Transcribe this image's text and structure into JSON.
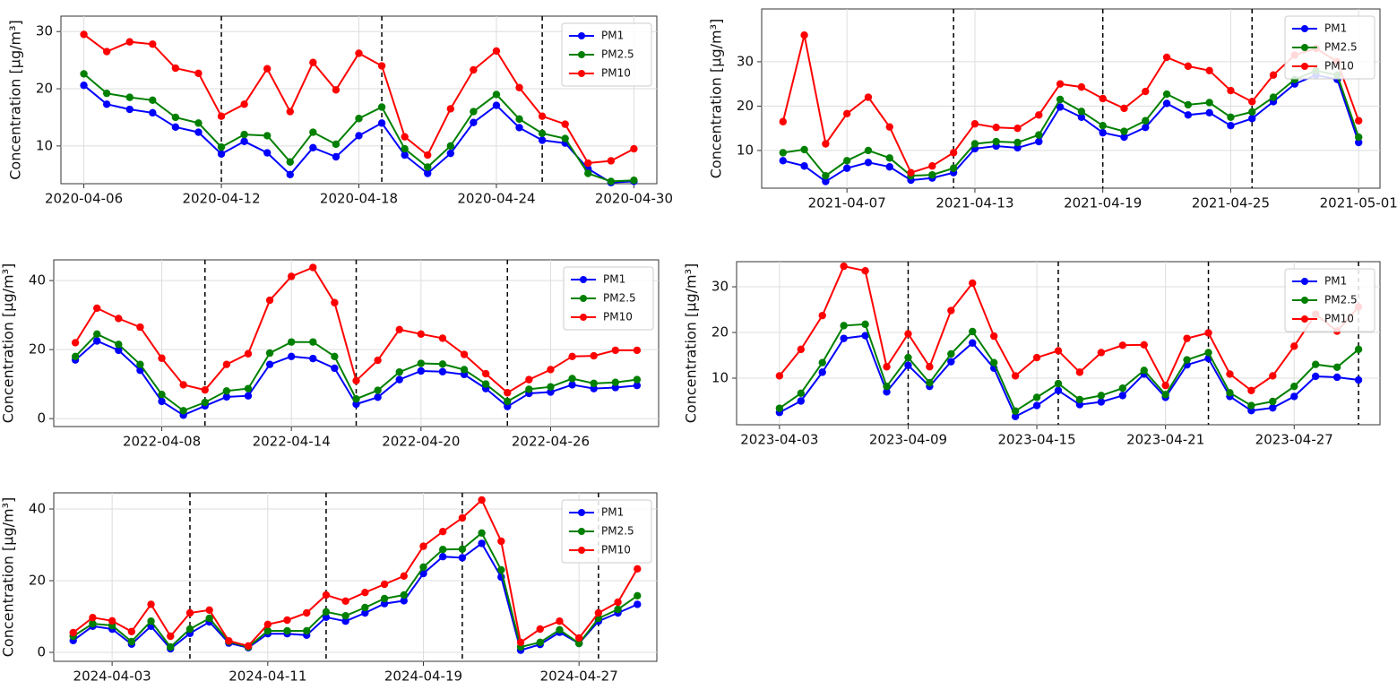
{
  "chart_data": [
    {
      "type": "line",
      "ylabel": "Concentration [μg/m³]",
      "x": [
        "2020-04-06",
        "2020-04-07",
        "2020-04-08",
        "2020-04-09",
        "2020-04-10",
        "2020-04-11",
        "2020-04-12",
        "2020-04-13",
        "2020-04-14",
        "2020-04-15",
        "2020-04-16",
        "2020-04-17",
        "2020-04-18",
        "2020-04-19",
        "2020-04-20",
        "2020-04-21",
        "2020-04-22",
        "2020-04-23",
        "2020-04-24",
        "2020-04-25",
        "2020-04-26",
        "2020-04-27",
        "2020-04-28",
        "2020-04-29",
        "2020-04-30"
      ],
      "series": [
        {
          "name": "PM1",
          "color": "#0000ff",
          "values": [
            20.6,
            17.3,
            16.4,
            15.8,
            13.3,
            12.4,
            8.6,
            10.8,
            8.8,
            5,
            9.7,
            8.1,
            11.8,
            14,
            8.4,
            5.2,
            8.7,
            14.1,
            17.1,
            13.2,
            11,
            10.5,
            6,
            3.6,
            3.8
          ]
        },
        {
          "name": "PM2.5",
          "color": "#008000",
          "values": [
            22.6,
            19.2,
            18.5,
            18,
            15,
            14,
            9.8,
            12,
            11.8,
            7.2,
            12.4,
            10.3,
            14.8,
            16.8,
            9.5,
            6.3,
            10,
            16,
            19,
            14.7,
            12.2,
            11.3,
            5.2,
            3.8,
            4.0
          ]
        },
        {
          "name": "PM10",
          "color": "#ff0000",
          "values": [
            29.5,
            26.5,
            28.2,
            27.8,
            23.6,
            22.7,
            15.2,
            17.3,
            23.5,
            16,
            24.6,
            19.8,
            26.2,
            24,
            11.6,
            8.4,
            16.5,
            23.3,
            26.6,
            20.2,
            15.2,
            13.8,
            7,
            7.4,
            9.5
          ]
        }
      ],
      "xlim": [
        "2020-04-05",
        "2020-05-01"
      ],
      "xticks": [
        "2020-04-06",
        "2020-04-12",
        "2020-04-18",
        "2020-04-24",
        "2020-04-30"
      ],
      "ylim": [
        3.4,
        32.7
      ],
      "yticks": [
        10,
        20,
        30
      ],
      "vlines": [
        "2020-04-12",
        "2020-04-19",
        "2020-04-26"
      ],
      "grid": true,
      "legend": "upper right"
    },
    {
      "type": "line",
      "ylabel": "Concentration [μg/m³]",
      "x": [
        "2021-04-04",
        "2021-04-05",
        "2021-04-06",
        "2021-04-07",
        "2021-04-08",
        "2021-04-09",
        "2021-04-10",
        "2021-04-11",
        "2021-04-12",
        "2021-04-13",
        "2021-04-14",
        "2021-04-15",
        "2021-04-16",
        "2021-04-17",
        "2021-04-18",
        "2021-04-19",
        "2021-04-20",
        "2021-04-21",
        "2021-04-22",
        "2021-04-23",
        "2021-04-24",
        "2021-04-25",
        "2021-04-26",
        "2021-04-27",
        "2021-04-28",
        "2021-04-29",
        "2021-04-30",
        "2021-05-01"
      ],
      "series": [
        {
          "name": "PM1",
          "color": "#0000ff",
          "values": [
            7.7,
            6.5,
            3,
            6,
            7.3,
            6.3,
            3.3,
            3.8,
            5,
            10.4,
            11,
            10.6,
            12,
            19.8,
            17.5,
            14,
            13,
            15.2,
            20.6,
            18,
            18.5,
            15.6,
            17.2,
            21,
            25,
            27,
            26,
            11.8
          ]
        },
        {
          "name": "PM2.5",
          "color": "#008000",
          "values": [
            9.5,
            10.2,
            4.3,
            7.7,
            10,
            8.3,
            4.3,
            4.5,
            6,
            11.5,
            12,
            11.8,
            13.5,
            21.5,
            18.8,
            15.6,
            14.3,
            16.7,
            22.7,
            20.3,
            20.8,
            17.5,
            18.7,
            22,
            26,
            28,
            27,
            13
          ]
        },
        {
          "name": "PM10",
          "color": "#ff0000",
          "values": [
            16.5,
            36,
            11.5,
            18.3,
            22,
            15.3,
            5,
            6.5,
            9.5,
            16,
            15.2,
            15,
            18,
            25,
            24.3,
            21.7,
            19.5,
            23.3,
            31,
            29,
            28,
            23.5,
            21,
            27,
            31.5,
            33,
            30,
            16.7
          ]
        }
      ],
      "xlim": [
        "2021-04-03",
        "2021-05-02"
      ],
      "xticks": [
        "2021-04-07",
        "2021-04-13",
        "2021-04-19",
        "2021-04-25",
        "2021-05-01"
      ],
      "ylim": [
        1.5,
        41.9
      ],
      "yticks": [
        10,
        20,
        30
      ],
      "vlines": [
        "2021-04-12",
        "2021-04-19",
        "2021-04-26"
      ],
      "grid": true,
      "legend": "upper right"
    },
    {
      "type": "line",
      "ylabel": "Concentration [μg/m³]",
      "x": [
        "2022-04-04",
        "2022-04-05",
        "2022-04-06",
        "2022-04-07",
        "2022-04-08",
        "2022-04-09",
        "2022-04-10",
        "2022-04-11",
        "2022-04-12",
        "2022-04-13",
        "2022-04-14",
        "2022-04-15",
        "2022-04-16",
        "2022-04-17",
        "2022-04-18",
        "2022-04-19",
        "2022-04-20",
        "2022-04-21",
        "2022-04-22",
        "2022-04-23",
        "2022-04-24",
        "2022-04-25",
        "2022-04-26",
        "2022-04-27",
        "2022-04-28",
        "2022-04-29",
        "2022-04-30"
      ],
      "series": [
        {
          "name": "PM1",
          "color": "#0000ff",
          "values": [
            17,
            22.5,
            19.8,
            14,
            5,
            1,
            3.7,
            6.3,
            6.6,
            15.7,
            18,
            17.4,
            14.6,
            4.2,
            6.2,
            11.3,
            13.8,
            13.6,
            12.8,
            8.7,
            3.5,
            7.3,
            7.7,
            9.8,
            8.7,
            9,
            9.6
          ]
        },
        {
          "name": "PM2.5",
          "color": "#008000",
          "values": [
            18,
            24.5,
            21.5,
            15.7,
            7,
            2.3,
            4.7,
            8,
            8.7,
            19,
            22.2,
            22.2,
            18,
            5.7,
            8.2,
            13.5,
            16,
            15.8,
            14.2,
            10,
            5,
            8.5,
            9.2,
            11.6,
            10.2,
            10.5,
            11.3
          ]
        },
        {
          "name": "PM10",
          "color": "#ff0000",
          "values": [
            22,
            32,
            29,
            26.5,
            17.5,
            9.8,
            8.3,
            15.7,
            18.8,
            34.3,
            41.2,
            43.8,
            33.6,
            11,
            16.9,
            25.8,
            24.5,
            23.3,
            18.6,
            13,
            7.5,
            11.3,
            14.2,
            18,
            18.2,
            19.8,
            19.8
          ]
        }
      ],
      "xlim": [
        "2022-04-03",
        "2022-05-01"
      ],
      "xticks": [
        "2022-04-08",
        "2022-04-14",
        "2022-04-20",
        "2022-04-26"
      ],
      "ylim": [
        -2.3,
        46
      ],
      "yticks": [
        0,
        20,
        40
      ],
      "vlines": [
        "2022-04-10",
        "2022-04-17",
        "2022-04-24"
      ],
      "grid": true,
      "legend": "upper right"
    },
    {
      "type": "line",
      "ylabel": "Concentration [μg/m³]",
      "x": [
        "2023-04-03",
        "2023-04-04",
        "2023-04-05",
        "2023-04-06",
        "2023-04-07",
        "2023-04-08",
        "2023-04-09",
        "2023-04-10",
        "2023-04-11",
        "2023-04-12",
        "2023-04-13",
        "2023-04-14",
        "2023-04-15",
        "2023-04-16",
        "2023-04-17",
        "2023-04-18",
        "2023-04-19",
        "2023-04-20",
        "2023-04-21",
        "2023-04-22",
        "2023-04-23",
        "2023-04-24",
        "2023-04-25",
        "2023-04-26",
        "2023-04-27",
        "2023-04-28",
        "2023-04-29",
        "2023-04-30"
      ],
      "series": [
        {
          "name": "PM1",
          "color": "#0000ff",
          "values": [
            2.5,
            5,
            11.3,
            18.7,
            19.3,
            7,
            12.8,
            8.2,
            13.6,
            17.7,
            12.2,
            1.6,
            4,
            7.3,
            4.2,
            4.8,
            6.2,
            10.9,
            5.8,
            12.9,
            14.3,
            6,
            2.9,
            3.5,
            6,
            10.4,
            10.2,
            9.6
          ]
        },
        {
          "name": "PM2.5",
          "color": "#008000",
          "values": [
            3.4,
            6.7,
            13.4,
            21.5,
            21.8,
            8.2,
            14.5,
            9,
            15.3,
            20.2,
            13.4,
            2.8,
            5.8,
            8.8,
            5.3,
            6.2,
            7.8,
            11.7,
            6.4,
            14,
            15.6,
            6.8,
            4,
            4.9,
            8.2,
            13,
            12.4,
            16.3
          ]
        },
        {
          "name": "PM10",
          "color": "#ff0000",
          "values": [
            10.5,
            16.3,
            23.7,
            34.5,
            33.5,
            12.5,
            19.7,
            12.5,
            24.8,
            30.8,
            19.2,
            10.5,
            14.5,
            16,
            11.3,
            15.6,
            17.2,
            17.3,
            8.4,
            18.7,
            19.9,
            10.9,
            7.3,
            10.5,
            17,
            24,
            20.3,
            25.6
          ]
        }
      ],
      "xlim": [
        "2023-04-01",
        "2023-05-01"
      ],
      "xticks": [
        "2023-04-03",
        "2023-04-09",
        "2023-04-15",
        "2023-04-21",
        "2023-04-27"
      ],
      "ylim": [
        -0.2,
        35.5
      ],
      "yticks": [
        10,
        20,
        30
      ],
      "vlines": [
        "2023-04-09",
        "2023-04-16",
        "2023-04-23",
        "2023-04-30"
      ],
      "grid": true,
      "legend": "upper right"
    },
    {
      "type": "line",
      "ylabel": "Concentration [μg/m³]",
      "x": [
        "2024-04-01",
        "2024-04-02",
        "2024-04-03",
        "2024-04-04",
        "2024-04-05",
        "2024-04-06",
        "2024-04-07",
        "2024-04-08",
        "2024-04-09",
        "2024-04-10",
        "2024-04-11",
        "2024-04-12",
        "2024-04-13",
        "2024-04-14",
        "2024-04-15",
        "2024-04-16",
        "2024-04-17",
        "2024-04-18",
        "2024-04-19",
        "2024-04-20",
        "2024-04-21",
        "2024-04-22",
        "2024-04-23",
        "2024-04-24",
        "2024-04-25",
        "2024-04-26",
        "2024-04-27",
        "2024-04-28",
        "2024-04-29",
        "2024-04-30"
      ],
      "series": [
        {
          "name": "PM1",
          "color": "#0000ff",
          "values": [
            3.3,
            7.3,
            6.5,
            2.3,
            7.3,
            1,
            5.3,
            8.5,
            2.6,
            1.3,
            5.2,
            5.2,
            4.8,
            9.8,
            8.7,
            11,
            13.6,
            14.4,
            22,
            26.7,
            26.4,
            30.4,
            21,
            0.6,
            2.2,
            5.6,
            2.5,
            8.7,
            11,
            13.4
          ]
        },
        {
          "name": "PM2.5",
          "color": "#008000",
          "values": [
            4.5,
            8,
            7.5,
            3,
            8.7,
            1.5,
            6.5,
            9.5,
            3,
            1.5,
            6,
            6,
            6,
            11.3,
            10.2,
            12.5,
            15,
            16,
            23.8,
            28.7,
            28.8,
            33.3,
            23,
            1.5,
            2.8,
            6.3,
            2.5,
            9.5,
            12,
            15.8
          ]
        },
        {
          "name": "PM10",
          "color": "#ff0000",
          "values": [
            5.5,
            9.7,
            8.8,
            5.8,
            13.4,
            4.5,
            11,
            11.8,
            3.2,
            1.8,
            7.8,
            9,
            11,
            16,
            14.3,
            16.7,
            19,
            21.3,
            29.6,
            33.7,
            37.5,
            42.5,
            31,
            2.8,
            6.5,
            8.7,
            4,
            11,
            14,
            23.3
          ]
        }
      ],
      "xlim": [
        "2024-03-31",
        "2024-05-01"
      ],
      "xticks": [
        "2024-04-03",
        "2024-04-11",
        "2024-04-19",
        "2024-04-27"
      ],
      "ylim": [
        -2.5,
        44.5
      ],
      "yticks": [
        0,
        20,
        40
      ],
      "vlines": [
        "2024-04-07",
        "2024-04-14",
        "2024-04-21",
        "2024-04-28"
      ],
      "grid": true,
      "legend": "upper right"
    }
  ]
}
